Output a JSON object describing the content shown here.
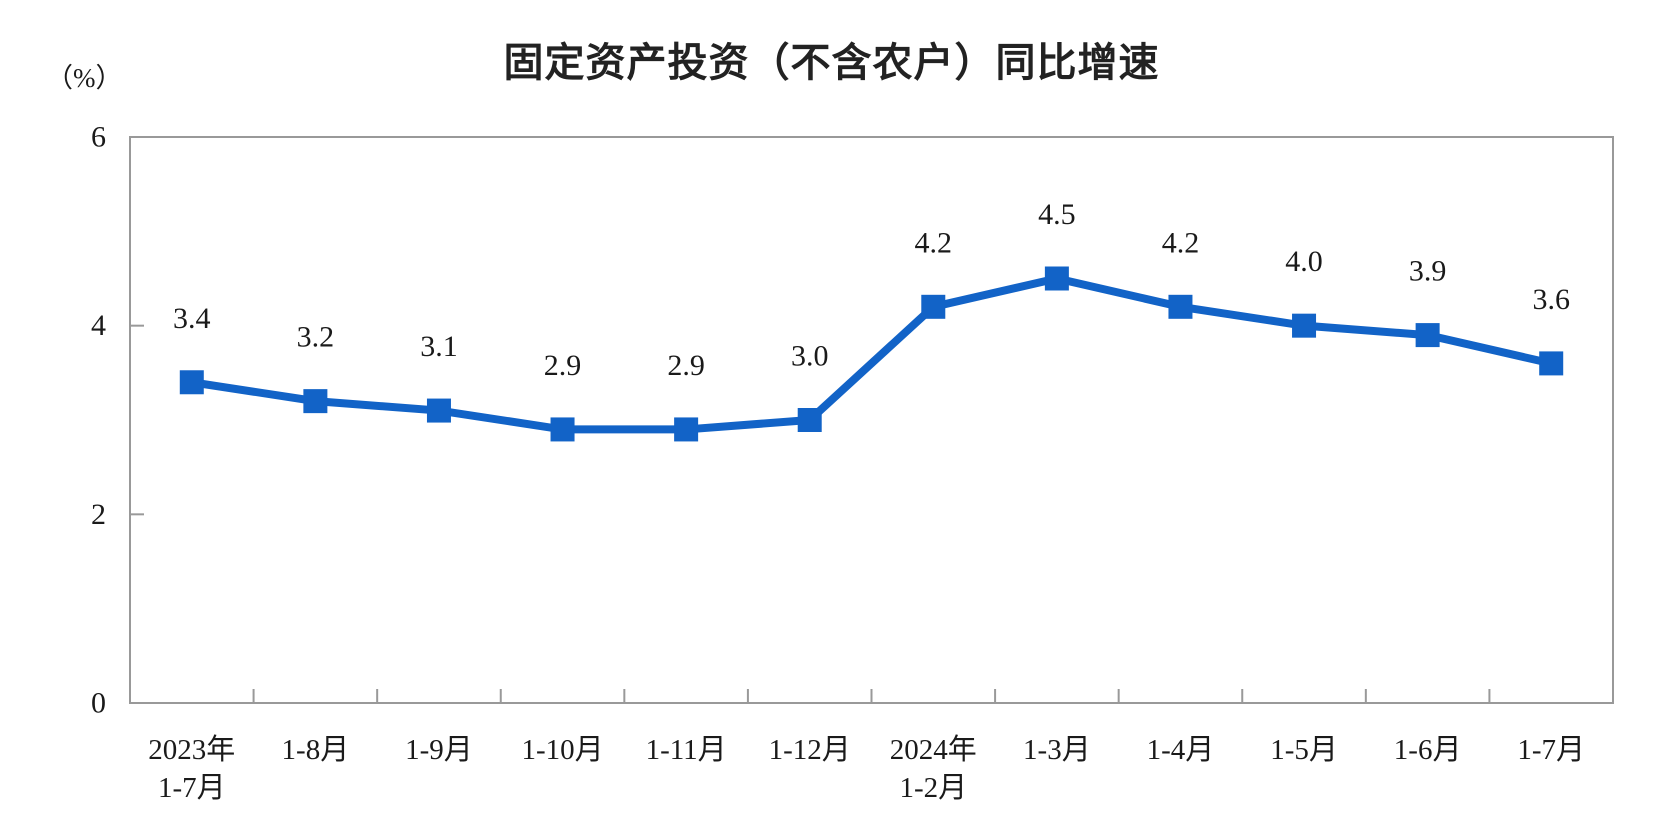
{
  "chart_data": {
    "type": "line",
    "title": "固定资产投资（不含农户）同比增速",
    "unit_label": "（%）",
    "categories": [
      "2023年\n1-7月",
      "1-8月",
      "1-9月",
      "1-10月",
      "1-11月",
      "1-12月",
      "2024年\n1-2月",
      "1-3月",
      "1-4月",
      "1-5月",
      "1-6月",
      "1-7月"
    ],
    "values": [
      3.4,
      3.2,
      3.1,
      2.9,
      2.9,
      3.0,
      4.2,
      4.5,
      4.2,
      4.0,
      3.9,
      3.6
    ],
    "xlabel": "",
    "ylabel": "（%）",
    "ylim": [
      0,
      6
    ],
    "yticks": [
      0,
      2,
      4,
      6
    ],
    "grid": false,
    "legend_position": "none",
    "marker_shape": "square",
    "colors": {
      "line": "#1263c7",
      "marker": "#1263c7",
      "axis": "#999999",
      "text": "#1a1a1a",
      "title": "#222222",
      "background": "#ffffff"
    }
  }
}
